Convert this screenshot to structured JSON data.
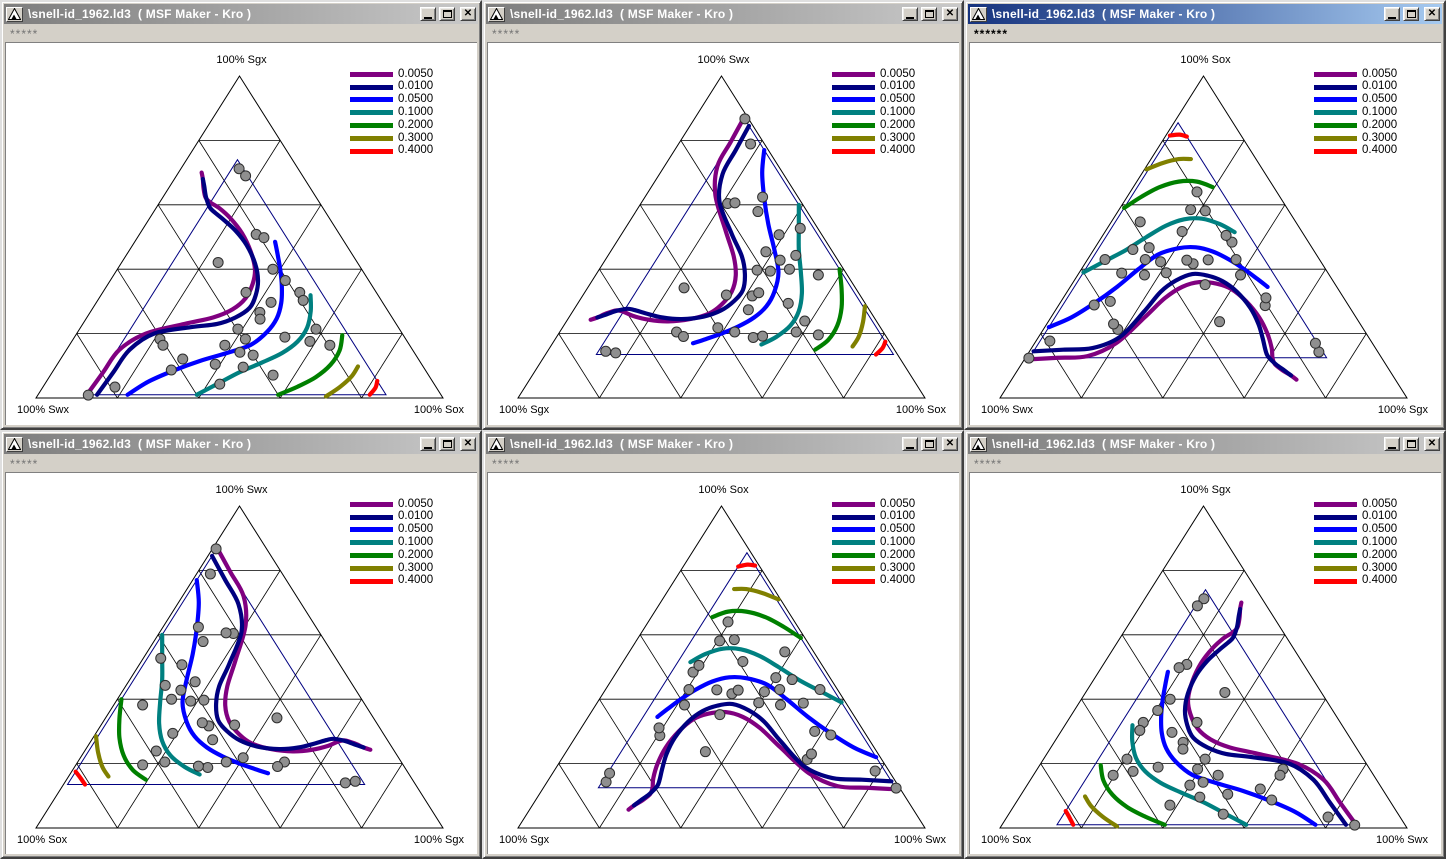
{
  "window_chrome": {
    "title": "\\snell-id_1962.ld3  ( MSF Maker - Kro )",
    "app_icon": "ternary-triangle-icon",
    "button_names": {
      "minimize": "minimize",
      "maximize": "maximize",
      "close": "close"
    },
    "close_glyph": "✕"
  },
  "legend": [
    {
      "label": "0.0050",
      "color": "#800080"
    },
    {
      "label": "0.0100",
      "color": "#000080"
    },
    {
      "label": "0.0500",
      "color": "#0000ff"
    },
    {
      "label": "0.1000",
      "color": "#008080"
    },
    {
      "label": "0.2000",
      "color": "#008000"
    },
    {
      "label": "0.3000",
      "color": "#808000"
    },
    {
      "label": "0.4000",
      "color": "#ff0000"
    }
  ],
  "windows": [
    {
      "id": 1,
      "active": false,
      "menu_text": "*****",
      "axes": {
        "top": "Sgx",
        "bl": "Swx",
        "br": "Sox"
      },
      "labels": {
        "top": "100% Sgx",
        "bl": "100% Swx",
        "br": "100% Sox"
      }
    },
    {
      "id": 2,
      "active": false,
      "menu_text": "*****",
      "axes": {
        "top": "Swx",
        "bl": "Sgx",
        "br": "Sox"
      },
      "labels": {
        "top": "100% Swx",
        "bl": "100% Sgx",
        "br": "100% Sox"
      }
    },
    {
      "id": 3,
      "active": true,
      "menu_text": "******",
      "axes": {
        "top": "Sox",
        "bl": "Swx",
        "br": "Sgx"
      },
      "labels": {
        "top": "100% Sox",
        "bl": "100% Swx",
        "br": "100% Sgx"
      }
    },
    {
      "id": 4,
      "active": false,
      "menu_text": "*****",
      "axes": {
        "top": "Swx",
        "bl": "Sox",
        "br": "Sgx"
      },
      "labels": {
        "top": "100% Swx",
        "bl": "100% Sox",
        "br": "100% Sgx"
      }
    },
    {
      "id": 5,
      "active": false,
      "menu_text": "*****",
      "axes": {
        "top": "Sox",
        "bl": "Sgx",
        "br": "Swx"
      },
      "labels": {
        "top": "100% Sox",
        "bl": "100% Sgx",
        "br": "100% Swx"
      }
    },
    {
      "id": 6,
      "active": false,
      "menu_text": "*****",
      "axes": {
        "top": "Sgx",
        "bl": "Sox",
        "br": "Swx"
      },
      "labels": {
        "top": "100% Sgx",
        "bl": "100% Sox",
        "br": "100% Swx"
      }
    }
  ],
  "chart_data": {
    "type": "ternary-contour",
    "components": [
      "Swx",
      "Sox",
      "Sgx"
    ],
    "grid_divisions": 5,
    "legend_position": "top-right",
    "contours": [
      {
        "level": "0.0050",
        "color": "#800080",
        "points": [
          [
            0.87,
            0.12,
            0.01
          ],
          [
            0.795,
            0.125,
            0.08
          ],
          [
            0.72,
            0.13,
            0.15
          ],
          [
            0.63,
            0.17,
            0.2
          ],
          [
            0.52,
            0.25,
            0.23
          ],
          [
            0.44,
            0.31,
            0.25
          ],
          [
            0.38,
            0.345,
            0.275
          ],
          [
            0.33,
            0.36,
            0.31
          ],
          [
            0.29,
            0.355,
            0.355
          ],
          [
            0.262,
            0.338,
            0.4
          ],
          [
            0.245,
            0.3,
            0.455
          ],
          [
            0.238,
            0.25,
            0.512
          ],
          [
            0.243,
            0.2,
            0.557
          ],
          [
            0.255,
            0.155,
            0.59
          ],
          [
            0.268,
            0.125,
            0.607
          ],
          [
            0.272,
            0.105,
            0.623
          ],
          [
            0.262,
            0.085,
            0.653
          ],
          [
            0.25,
            0.07,
            0.68
          ],
          [
            0.243,
            0.057,
            0.7
          ]
        ]
      },
      {
        "level": "0.0100",
        "color": "#000080",
        "points": [
          [
            0.845,
            0.145,
            0.01
          ],
          [
            0.77,
            0.15,
            0.08
          ],
          [
            0.695,
            0.155,
            0.15
          ],
          [
            0.61,
            0.19,
            0.2
          ],
          [
            0.51,
            0.27,
            0.22
          ],
          [
            0.44,
            0.33,
            0.23
          ],
          [
            0.385,
            0.365,
            0.25
          ],
          [
            0.335,
            0.385,
            0.28
          ],
          [
            0.3,
            0.38,
            0.32
          ],
          [
            0.272,
            0.363,
            0.365
          ],
          [
            0.253,
            0.33,
            0.417
          ],
          [
            0.245,
            0.28,
            0.475
          ],
          [
            0.25,
            0.23,
            0.52
          ],
          [
            0.262,
            0.185,
            0.553
          ],
          [
            0.273,
            0.15,
            0.577
          ],
          [
            0.277,
            0.13,
            0.593
          ],
          [
            0.27,
            0.105,
            0.625
          ],
          [
            0.258,
            0.085,
            0.657
          ],
          [
            0.25,
            0.07,
            0.68
          ]
        ]
      },
      {
        "level": "0.0500",
        "color": "#0000ff",
        "points": [
          [
            0.77,
            0.22,
            0.01
          ],
          [
            0.7,
            0.25,
            0.05
          ],
          [
            0.62,
            0.295,
            0.085
          ],
          [
            0.54,
            0.345,
            0.115
          ],
          [
            0.46,
            0.4,
            0.14
          ],
          [
            0.39,
            0.445,
            0.165
          ],
          [
            0.33,
            0.465,
            0.205
          ],
          [
            0.285,
            0.468,
            0.247
          ],
          [
            0.25,
            0.455,
            0.295
          ],
          [
            0.222,
            0.43,
            0.348
          ],
          [
            0.2,
            0.4,
            0.4
          ],
          [
            0.183,
            0.37,
            0.447
          ],
          [
            0.17,
            0.345,
            0.485
          ]
        ]
      },
      {
        "level": "0.1000",
        "color": "#008080",
        "points": [
          [
            0.6,
            0.39,
            0.01
          ],
          [
            0.53,
            0.425,
            0.045
          ],
          [
            0.46,
            0.46,
            0.08
          ],
          [
            0.39,
            0.5,
            0.11
          ],
          [
            0.325,
            0.535,
            0.14
          ],
          [
            0.27,
            0.555,
            0.175
          ],
          [
            0.225,
            0.557,
            0.218
          ],
          [
            0.19,
            0.54,
            0.27
          ],
          [
            0.166,
            0.515,
            0.319
          ]
        ]
      },
      {
        "level": "0.2000",
        "color": "#008000",
        "points": [
          [
            0.4,
            0.59,
            0.01
          ],
          [
            0.34,
            0.625,
            0.035
          ],
          [
            0.28,
            0.655,
            0.065
          ],
          [
            0.225,
            0.672,
            0.103
          ],
          [
            0.18,
            0.672,
            0.148
          ],
          [
            0.15,
            0.655,
            0.195
          ]
        ]
      },
      {
        "level": "0.3000",
        "color": "#808000",
        "points": [
          [
            0.285,
            0.71,
            0.005
          ],
          [
            0.235,
            0.73,
            0.035
          ],
          [
            0.19,
            0.742,
            0.068
          ],
          [
            0.16,
            0.742,
            0.098
          ]
        ]
      },
      {
        "level": "0.4000",
        "color": "#ff0000",
        "points": [
          [
            0.175,
            0.815,
            0.01
          ],
          [
            0.155,
            0.818,
            0.032
          ],
          [
            0.135,
            0.812,
            0.053
          ]
        ]
      }
    ],
    "boundary": {
      "color": "#000080",
      "points": [
        [
          0.865,
          0.125,
          0.01
        ],
        [
          0.135,
          0.855,
          0.01
        ],
        [
          0.135,
          0.125,
          0.74
        ]
      ]
    },
    "scatter": {
      "color": "#8f8f8f",
      "points": [
        [
          0.145,
          0.143,
          0.712
        ],
        [
          0.14,
          0.17,
          0.69
        ],
        [
          0.205,
          0.287,
          0.508
        ],
        [
          0.191,
          0.311,
          0.498
        ],
        [
          0.342,
          0.237,
          0.421
        ],
        [
          0.218,
          0.382,
          0.4
        ],
        [
          0.205,
          0.43,
          0.365
        ],
        [
          0.188,
          0.484,
          0.328
        ],
        [
          0.192,
          0.505,
          0.303
        ],
        [
          0.205,
          0.581,
          0.214
        ],
        [
          0.196,
          0.64,
          0.164
        ],
        [
          0.274,
          0.429,
          0.297
        ],
        [
          0.317,
          0.417,
          0.266
        ],
        [
          0.327,
          0.428,
          0.245
        ],
        [
          0.397,
          0.389,
          0.214
        ],
        [
          0.394,
          0.423,
          0.183
        ],
        [
          0.454,
          0.382,
          0.164
        ],
        [
          0.428,
          0.43,
          0.142
        ],
        [
          0.4,
          0.467,
          0.133
        ],
        [
          0.507,
          0.388,
          0.105
        ],
        [
          0.443,
          0.461,
          0.096
        ],
        [
          0.382,
          0.547,
          0.071
        ],
        [
          0.239,
          0.585,
          0.176
        ],
        [
          0.579,
          0.3,
          0.121
        ],
        [
          0.624,
          0.289,
          0.087
        ],
        [
          0.604,
          0.213,
          0.183
        ],
        [
          0.606,
          0.23,
          0.164
        ],
        [
          0.789,
          0.177,
          0.034
        ],
        [
          0.867,
          0.124,
          0.009
        ],
        [
          0.527,
          0.43,
          0.043
        ],
        [
          0.294,
          0.517,
          0.189
        ],
        [
          0.32,
          0.352,
          0.328
        ]
      ]
    }
  }
}
